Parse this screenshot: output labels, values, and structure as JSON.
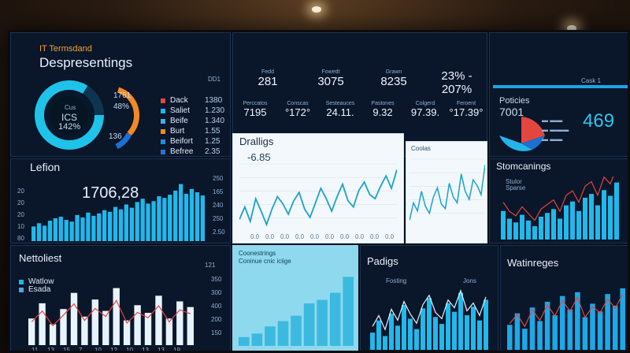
{
  "header": {
    "brand": "IT Termsdand",
    "title": "Despresentings"
  },
  "donut": {
    "label_top": "Cus",
    "label_mid": "ICS",
    "label_pct": "142%",
    "corner_tl": "1761",
    "corner_bl": "136",
    "gauge_pct": "48%"
  },
  "legend": {
    "items": [
      {
        "label": "Dack",
        "color": "#e2463e",
        "value": "1380"
      },
      {
        "label": "Saliet",
        "color": "#23b5e8",
        "value": "1.230"
      },
      {
        "label": "Beife",
        "color": "#4fa7e0",
        "value": "1.340"
      },
      {
        "label": "Burt",
        "color": "#f08a24",
        "value": "1.55"
      },
      {
        "label": "Beifort",
        "color": "#1d8fd6",
        "value": "1.25"
      },
      {
        "label": "Befree",
        "color": "#2f6fd1",
        "value": "2.35"
      }
    ],
    "corner": "DD1"
  },
  "stats": {
    "row1": [
      {
        "value": "281",
        "label": "Fedd"
      },
      {
        "value": "3075",
        "label": "Fowedt"
      },
      {
        "value": "8235",
        "label": "Grawn"
      },
      {
        "value": "23% - 207%",
        "label": ""
      }
    ],
    "row2": [
      {
        "value": "7195",
        "label": "Perccatos"
      },
      {
        "value": "°172°",
        "label": "Conscas"
      },
      {
        "value": "24.11.",
        "label": "Sesteauces"
      },
      {
        "value": "9.32",
        "label": "Pastones"
      },
      {
        "value": "97.39.",
        "label": "Colgerd"
      },
      {
        "value": "°17.39°",
        "label": "Feroent"
      }
    ]
  },
  "policies": {
    "title": "Poticies",
    "top": "Cask 1",
    "big_left": "7001",
    "big_right": "469"
  },
  "lefion": {
    "title": "Lefion",
    "big_value": "1706,28",
    "y_right": [
      "250",
      "165",
      "240",
      "250",
      "2.50"
    ],
    "y_left": [
      "20",
      "20",
      "20",
      "10",
      "80"
    ],
    "chart_data": {
      "type": "bar",
      "values": [
        18,
        22,
        19,
        25,
        28,
        30,
        26,
        24,
        32,
        29,
        35,
        31,
        34,
        38,
        36,
        42,
        39,
        45,
        41,
        48,
        52,
        46,
        49,
        55,
        53,
        57,
        62,
        70,
        58,
        64,
        60,
        56
      ]
    }
  },
  "dralligs": {
    "title": "Dralligs",
    "subtitle": "-6.85",
    "x_ticks": [
      "0.0",
      "0.0",
      "0.0",
      "0.0",
      "0.0",
      "0.0",
      "0.0",
      "0.0",
      "0.0",
      "0.0"
    ],
    "chart_data": {
      "type": "line",
      "values": [
        40,
        52,
        38,
        60,
        48,
        35,
        50,
        62,
        55,
        45,
        58,
        66,
        50,
        42,
        56,
        70,
        60,
        48,
        62,
        74,
        58,
        52,
        68,
        76,
        64,
        60,
        72,
        82,
        70,
        88
      ]
    }
  },
  "small_chart": {
    "title": "Coolas",
    "chart_data": {
      "type": "line",
      "values": [
        30,
        45,
        38,
        55,
        42,
        36,
        50,
        58,
        44,
        40,
        62,
        50,
        45,
        70,
        55,
        48,
        65,
        60,
        52,
        78
      ]
    }
  },
  "stomcanings": {
    "title": "Stomcanings",
    "legend": [
      "Stulor",
      "Sparse"
    ],
    "chart_data": {
      "type": "bar",
      "values": [
        30,
        22,
        18,
        26,
        20,
        14,
        24,
        28,
        32,
        22,
        36,
        40,
        30,
        44,
        48,
        36,
        52,
        46,
        60
      ]
    }
  },
  "nettoliest": {
    "title": "Nettoliest",
    "legend": [
      "Watlow",
      "Esada"
    ],
    "corner": "121",
    "y_right": [
      "350",
      "300",
      "400",
      "200",
      "150"
    ],
    "x_ticks": [
      "11",
      "13",
      "15",
      "7",
      "10",
      "12",
      "10",
      "13",
      "13",
      "19"
    ],
    "chart_data": {
      "type": "bar",
      "values": [
        28,
        44,
        22,
        38,
        55,
        30,
        48,
        36,
        60,
        26,
        42,
        34,
        52,
        28,
        46,
        40
      ]
    }
  },
  "cyan_chart": {
    "title": "Coonestrings",
    "subtitle": "Coninue cnic iciige",
    "chart_data": {
      "type": "bar",
      "values": [
        10,
        14,
        22,
        28,
        34,
        48,
        52,
        60,
        78
      ]
    }
  },
  "padigs": {
    "title": "Padigs",
    "legend": [
      "Fosting",
      "Jons"
    ],
    "chart_data": {
      "type": "bar",
      "values": [
        20,
        34,
        16,
        42,
        28,
        52,
        36,
        24,
        48,
        60,
        38,
        30,
        54,
        44,
        66,
        40,
        50,
        34,
        58
      ]
    }
  },
  "watinges": {
    "title": "Watinreges",
    "chart_data": {
      "type": "bar",
      "values": [
        26,
        38,
        22,
        44,
        30,
        50,
        36,
        56,
        42,
        60,
        34,
        48,
        40,
        58,
        46,
        64
      ]
    }
  }
}
